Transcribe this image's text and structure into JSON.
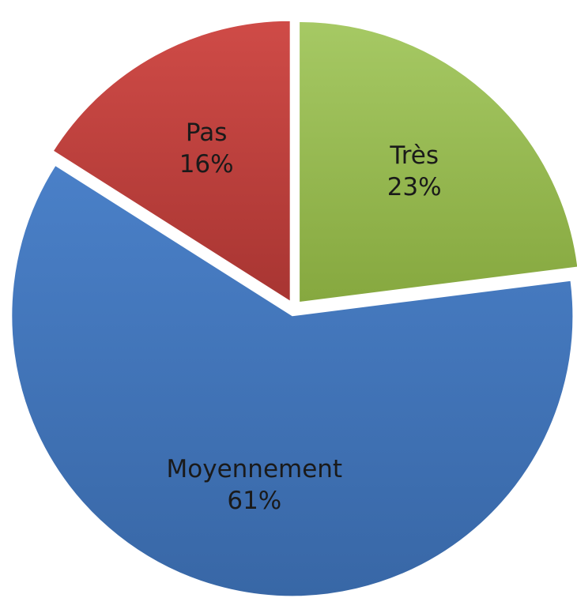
{
  "chart_data": {
    "type": "pie",
    "categories": [
      "Très",
      "Moyennement",
      "Pas"
    ],
    "values": [
      23,
      61,
      16
    ],
    "value_labels": [
      "23%",
      "61%",
      "16%"
    ],
    "colors": [
      "#9bbb59",
      "#4f81bd",
      "#c0504d"
    ]
  }
}
